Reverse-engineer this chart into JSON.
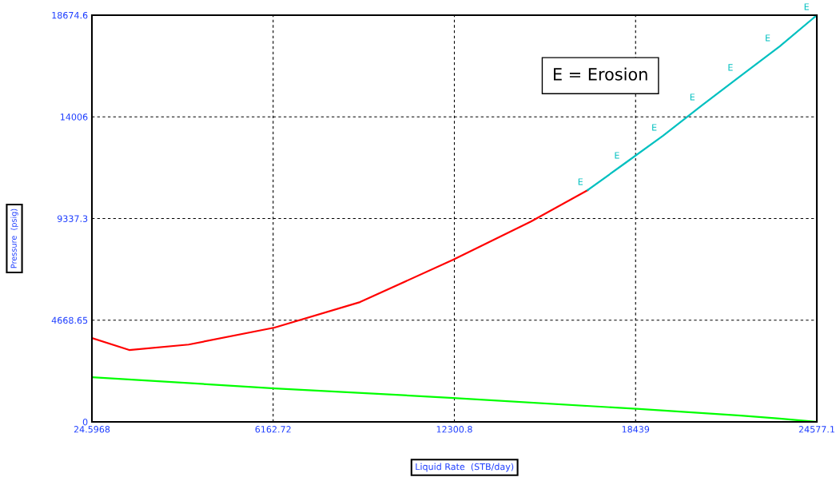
{
  "chart_data": {
    "type": "line",
    "xlabel": "Liquid Rate  (STB/day)",
    "ylabel": "Pressure  (psig)",
    "xlim": [
      24.5968,
      24577.1
    ],
    "ylim": [
      0,
      18674.6
    ],
    "xticks": [
      24.5968,
      6162.72,
      12300.8,
      18439,
      24577.1
    ],
    "yticks": [
      0,
      4668.65,
      9337.3,
      14006,
      18674.6
    ],
    "grid": true,
    "line_style": "solid",
    "marker": "none",
    "series": [
      {
        "color": "#ff0000",
        "x": [
          24.6,
          1288,
          3300,
          6210,
          9105,
          12263,
          14895,
          16816
        ],
        "values": [
          3850,
          3300,
          3550,
          4330,
          5500,
          7450,
          9200,
          10640
        ]
      },
      {
        "color": "#00c0c0",
        "x": [
          16816,
          18053,
          19369,
          20685,
          22001,
          23317,
          24577.1
        ],
        "values": [
          10640,
          11850,
          13140,
          14530,
          15890,
          17240,
          18674.6
        ]
      },
      {
        "color": "#00ff00",
        "x": [
          24.6,
          6210,
          12263,
          18580,
          22001,
          23317,
          24577.1
        ],
        "values": [
          2050,
          1540,
          1100,
          590,
          290,
          150,
          0
        ]
      }
    ],
    "annotations": [
      "E = Erosion",
      {
        "text": "E",
        "x": 16816,
        "y": 10640
      },
      {
        "text": "E",
        "x": 18053,
        "y": 11851
      },
      {
        "text": "E",
        "x": 19316,
        "y": 13135
      },
      {
        "text": "E",
        "x": 20606,
        "y": 14530
      },
      {
        "text": "E",
        "x": 21896,
        "y": 15888
      },
      {
        "text": "E",
        "x": 23159,
        "y": 17244
      },
      {
        "text": "E",
        "x": 24475,
        "y": 18674.6
      }
    ]
  }
}
